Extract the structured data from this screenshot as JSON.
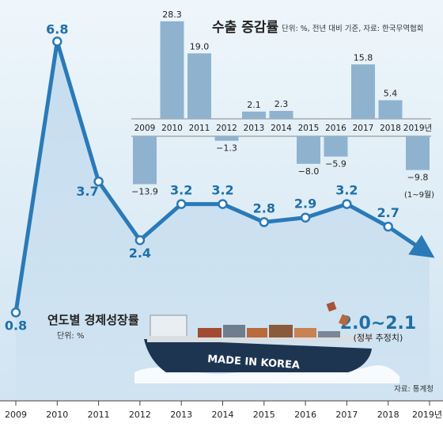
{
  "colors": {
    "background": "#cfe3f1",
    "background_light": "#eef6fb",
    "main_line": "#2a7ab8",
    "main_label": "#1f6fa8",
    "bar": "#8fb3cf",
    "text_dark": "#222222",
    "ship_hull": "#1e3552"
  },
  "chart_data": [
    {
      "type": "line",
      "title": "연도별 경제성장률",
      "unit_note": "단위: %",
      "source": "자료: 통계청",
      "x": [
        "2009",
        "2010",
        "2011",
        "2012",
        "2013",
        "2014",
        "2015",
        "2016",
        "2017",
        "2018",
        "2019년"
      ],
      "values": [
        0.8,
        6.8,
        3.7,
        2.4,
        3.2,
        3.2,
        2.8,
        2.9,
        3.2,
        2.7,
        2.05
      ],
      "value_labels": [
        "0.8",
        "6.8",
        "3.7",
        "2.4",
        "3.2",
        "3.2",
        "2.8",
        "2.9",
        "3.2",
        "2.7",
        "2.0~2.1"
      ],
      "final_note": "(정부 추정치)",
      "ship_text": "MADE IN KOREA"
    },
    {
      "type": "bar",
      "title": "수출 증감률",
      "unit_note": "단위: %, 전년 대비 기준, 자료: 한국무역협회",
      "categories": [
        "2009",
        "2010",
        "2011",
        "2012",
        "2013",
        "2014",
        "2015",
        "2016",
        "2017",
        "2018",
        "2019년"
      ],
      "values": [
        -13.9,
        28.3,
        19.0,
        -1.3,
        2.1,
        2.3,
        -8.0,
        -5.9,
        15.8,
        5.4,
        -9.8
      ],
      "value_labels": [
        "−13.9",
        "28.3",
        "19.0",
        "−1.3",
        "2.1",
        "2.3",
        "−8.0",
        "−5.9",
        "15.8",
        "5.4",
        "−9.8"
      ],
      "last_note": "(1~9월)"
    }
  ]
}
